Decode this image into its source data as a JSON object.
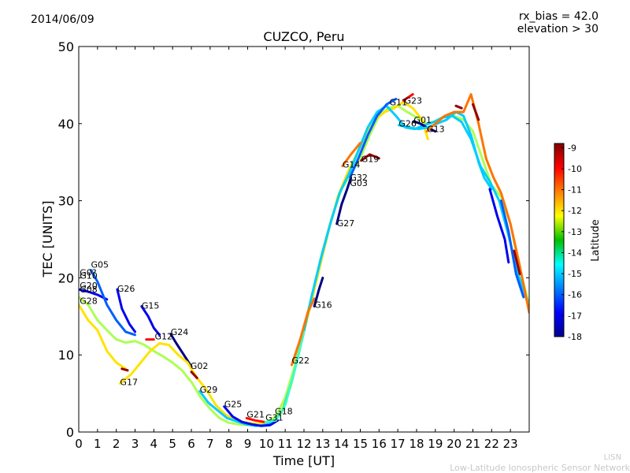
{
  "header": {
    "date": "2014/06/09",
    "rx_bias": "rx_bias = 42.0",
    "elevation": "elevation > 30",
    "title": "CUZCO, Peru"
  },
  "footer": {
    "abbr": "LISN",
    "org": "Low-Latitude Ionospheric Sensor Network"
  },
  "chart_data": {
    "type": "line",
    "title": "CUZCO, Peru",
    "xlabel": "Time [UT]",
    "ylabel": "TEC [UNITS]",
    "xlim": [
      0,
      24
    ],
    "ylim": [
      0,
      50
    ],
    "xticks": [
      "0",
      "1",
      "2",
      "3",
      "4",
      "5",
      "6",
      "7",
      "8",
      "9",
      "10",
      "11",
      "12",
      "13",
      "14",
      "15",
      "16",
      "17",
      "18",
      "19",
      "20",
      "21",
      "22",
      "23"
    ],
    "yticks": [
      "0",
      "10",
      "20",
      "30",
      "40",
      "50"
    ],
    "grid": false,
    "colorbar": {
      "label": "Latitude",
      "range": [
        -18,
        -8.8
      ],
      "ticks": [
        "-9",
        "-10",
        "-11",
        "-12",
        "-13",
        "-14",
        "-15",
        "-16",
        "-17",
        "-18"
      ],
      "colormap": "jet"
    },
    "satellite_labels": [
      {
        "name": "G05",
        "x": 0.65,
        "y": 21.3
      },
      {
        "name": "G0?",
        "x": 0.05,
        "y": 20.3
      },
      {
        "name": "G10",
        "x": 0.05,
        "y": 19.9
      },
      {
        "name": "G20",
        "x": 0.05,
        "y": 18.6
      },
      {
        "name": "G08",
        "x": 0.05,
        "y": 18.1
      },
      {
        "name": "G28",
        "x": 0.05,
        "y": 16.6
      },
      {
        "name": "G26",
        "x": 2.05,
        "y": 18.2
      },
      {
        "name": "G15",
        "x": 3.35,
        "y": 16.0
      },
      {
        "name": "G24",
        "x": 4.9,
        "y": 12.6
      },
      {
        "name": "G12",
        "x": 4.05,
        "y": 12.0
      },
      {
        "name": "G17",
        "x": 2.2,
        "y": 6.1
      },
      {
        "name": "G02",
        "x": 5.95,
        "y": 8.2
      },
      {
        "name": "G29",
        "x": 6.45,
        "y": 5.1
      },
      {
        "name": "G25",
        "x": 7.75,
        "y": 3.2
      },
      {
        "name": "G21",
        "x": 8.95,
        "y": 1.9
      },
      {
        "name": "G31",
        "x": 9.95,
        "y": 1.5
      },
      {
        "name": "G18",
        "x": 10.45,
        "y": 2.3
      },
      {
        "name": "G22",
        "x": 11.35,
        "y": 8.9
      },
      {
        "name": "G16",
        "x": 12.55,
        "y": 16.1
      },
      {
        "name": "G27",
        "x": 13.75,
        "y": 26.7
      },
      {
        "name": "G14",
        "x": 14.05,
        "y": 34.3
      },
      {
        "name": "G32",
        "x": 14.45,
        "y": 32.6
      },
      {
        "name": "G03",
        "x": 14.45,
        "y": 31.9
      },
      {
        "name": "G19",
        "x": 15.05,
        "y": 35.0
      },
      {
        "name": "G11",
        "x": 16.55,
        "y": 42.4
      },
      {
        "name": "G23",
        "x": 17.35,
        "y": 42.6
      },
      {
        "name": "G26",
        "x": 17.05,
        "y": 39.6
      },
      {
        "name": "G01",
        "x": 17.85,
        "y": 40.1
      },
      {
        "name": "G13",
        "x": 18.55,
        "y": 38.9
      }
    ],
    "series": [
      {
        "lat": -17,
        "points": [
          [
            0,
            18.5
          ],
          [
            0.5,
            18.2
          ],
          [
            1.0,
            17.8
          ],
          [
            1.5,
            17.2
          ]
        ]
      },
      {
        "lat": -13,
        "points": [
          [
            0,
            17.5
          ],
          [
            0.5,
            16.5
          ],
          [
            1.0,
            14.5
          ],
          [
            1.5,
            13.2
          ],
          [
            2.0,
            12.0
          ],
          [
            2.5,
            11.6
          ],
          [
            3.0,
            11.8
          ],
          [
            3.5,
            11.3
          ],
          [
            4.0,
            10.5
          ],
          [
            4.5,
            9.8
          ],
          [
            5.0,
            9.0
          ],
          [
            5.5,
            8.0
          ],
          [
            6.0,
            6.5
          ],
          [
            6.5,
            4.5
          ],
          [
            7.0,
            3.0
          ],
          [
            7.5,
            1.8
          ],
          [
            8.0,
            1.2
          ],
          [
            8.5,
            1.0
          ],
          [
            9.0,
            0.9
          ],
          [
            9.5,
            1.0
          ],
          [
            10.0,
            1.2
          ],
          [
            10.5,
            2.0
          ],
          [
            11.0,
            4.5
          ],
          [
            11.5,
            8.5
          ],
          [
            12.0,
            13.5
          ],
          [
            12.5,
            18.5
          ],
          [
            13.0,
            23.5
          ],
          [
            13.5,
            28.0
          ],
          [
            14.0,
            31.5
          ],
          [
            14.5,
            33.5
          ],
          [
            15.0,
            35.5
          ],
          [
            15.5,
            38.5
          ],
          [
            16.0,
            41.0
          ],
          [
            16.5,
            42.0
          ],
          [
            17.0,
            42.3
          ],
          [
            17.5,
            41.5
          ],
          [
            18.0,
            40.8
          ],
          [
            18.5,
            40.0
          ],
          [
            19.0,
            40.3
          ],
          [
            19.5,
            41.0
          ],
          [
            20.0,
            41.0
          ],
          [
            20.5,
            40.5
          ],
          [
            21.0,
            39.0
          ],
          [
            21.5,
            35.5
          ],
          [
            22.0,
            32.0
          ],
          [
            22.5,
            30.5
          ],
          [
            23.0,
            27.0
          ],
          [
            23.5,
            21.0
          ],
          [
            24.0,
            16.5
          ]
        ]
      },
      {
        "lat": -12,
        "points": [
          [
            0,
            16.5
          ],
          [
            0.5,
            14.5
          ],
          [
            1.0,
            13.2
          ],
          [
            1.5,
            10.5
          ],
          [
            2.0,
            9.0
          ],
          [
            2.5,
            8.2
          ]
        ]
      },
      {
        "lat": -16,
        "points": [
          [
            0.65,
            21.0
          ],
          [
            1.0,
            19.5
          ],
          [
            1.5,
            16.5
          ],
          [
            2.0,
            14.5
          ],
          [
            2.5,
            13.0
          ],
          [
            3.0,
            12.6
          ]
        ]
      },
      {
        "lat": -17,
        "points": [
          [
            2.05,
            18.5
          ],
          [
            2.3,
            16.0
          ],
          [
            2.7,
            14.0
          ],
          [
            3.0,
            13.0
          ]
        ]
      },
      {
        "lat": -17,
        "points": [
          [
            3.35,
            16.3
          ],
          [
            3.7,
            15.0
          ],
          [
            4.0,
            13.5
          ],
          [
            4.3,
            12.6
          ]
        ]
      },
      {
        "lat": -18,
        "points": [
          [
            4.9,
            12.7
          ],
          [
            5.2,
            11.5
          ],
          [
            5.6,
            10.0
          ],
          [
            6.0,
            8.5
          ]
        ]
      },
      {
        "lat": -12,
        "points": [
          [
            2.2,
            6.3
          ],
          [
            2.8,
            7.5
          ],
          [
            3.3,
            9.0
          ],
          [
            3.8,
            10.5
          ],
          [
            4.3,
            11.5
          ],
          [
            4.8,
            11.3
          ],
          [
            5.3,
            10.0
          ],
          [
            5.8,
            9.0
          ],
          [
            6.3,
            7.0
          ],
          [
            6.8,
            5.5
          ],
          [
            7.3,
            3.5
          ],
          [
            7.8,
            2.3
          ],
          [
            8.3,
            1.6
          ],
          [
            8.8,
            1.3
          ],
          [
            9.3,
            1.1
          ],
          [
            9.8,
            1.0
          ],
          [
            10.3,
            1.2
          ],
          [
            10.8,
            2.5
          ],
          [
            11.3,
            6.0
          ],
          [
            11.8,
            11.0
          ],
          [
            12.3,
            16.0
          ],
          [
            12.8,
            21.0
          ],
          [
            13.3,
            26.0
          ],
          [
            13.8,
            30.5
          ],
          [
            14.3,
            33.5
          ],
          [
            14.8,
            36.0
          ],
          [
            15.3,
            38.5
          ],
          [
            15.8,
            40.5
          ],
          [
            16.3,
            41.5
          ],
          [
            16.8,
            42.0
          ],
          [
            17.3,
            42.8
          ],
          [
            17.8,
            42.0
          ],
          [
            18.3,
            40.5
          ],
          [
            18.6,
            38.0
          ]
        ]
      },
      {
        "lat": -15,
        "points": [
          [
            6.45,
            5.3
          ],
          [
            6.9,
            3.8
          ],
          [
            7.4,
            2.8
          ],
          [
            7.9,
            1.8
          ],
          [
            8.4,
            1.4
          ],
          [
            8.9,
            1.0
          ],
          [
            9.4,
            0.8
          ],
          [
            9.9,
            0.9
          ],
          [
            10.4,
            1.3
          ],
          [
            10.9,
            3.0
          ],
          [
            11.4,
            7.0
          ],
          [
            11.9,
            12.0
          ],
          [
            12.4,
            17.5
          ],
          [
            12.9,
            22.5
          ],
          [
            13.4,
            27.0
          ],
          [
            13.9,
            31.0
          ],
          [
            14.4,
            33.5
          ],
          [
            14.9,
            36.5
          ],
          [
            15.4,
            39.5
          ],
          [
            15.9,
            41.5
          ],
          [
            16.4,
            42.3
          ],
          [
            16.9,
            41.0
          ],
          [
            17.4,
            39.5
          ],
          [
            17.9,
            39.3
          ],
          [
            18.4,
            39.8
          ],
          [
            18.9,
            40.2
          ],
          [
            19.4,
            40.8
          ],
          [
            19.9,
            41.0
          ],
          [
            20.4,
            40.2
          ],
          [
            20.9,
            38.0
          ],
          [
            21.4,
            34.5
          ],
          [
            21.9,
            32.5
          ],
          [
            22.4,
            30.0
          ],
          [
            22.9,
            25.5
          ],
          [
            23.4,
            20.5
          ],
          [
            23.9,
            17.0
          ]
        ]
      },
      {
        "lat": -17,
        "points": [
          [
            7.75,
            3.3
          ],
          [
            8.2,
            2.0
          ],
          [
            8.7,
            1.3
          ],
          [
            9.2,
            1.0
          ],
          [
            9.7,
            0.8
          ],
          [
            10.2,
            0.9
          ],
          [
            10.6,
            1.5
          ]
        ]
      },
      {
        "lat": -10,
        "points": [
          [
            8.95,
            1.8
          ],
          [
            9.4,
            1.5
          ],
          [
            9.9,
            1.3
          ]
        ]
      },
      {
        "lat": -14,
        "points": [
          [
            9.95,
            1.3
          ],
          [
            10.5,
            1.5
          ],
          [
            11.0,
            3.5
          ],
          [
            11.5,
            8.0
          ],
          [
            12.0,
            13.0
          ]
        ]
      },
      {
        "lat": -11,
        "points": [
          [
            11.35,
            8.7
          ],
          [
            11.8,
            12.0
          ],
          [
            12.2,
            15.5
          ],
          [
            12.55,
            17.3
          ]
        ]
      },
      {
        "lat": -18,
        "points": [
          [
            12.55,
            16.3
          ],
          [
            12.8,
            18.5
          ],
          [
            13.0,
            20.0
          ]
        ]
      },
      {
        "lat": -18,
        "points": [
          [
            13.75,
            27.0
          ],
          [
            14.0,
            29.5
          ],
          [
            14.3,
            31.5
          ],
          [
            14.5,
            33.0
          ]
        ]
      },
      {
        "lat": -11,
        "points": [
          [
            14.05,
            34.5
          ],
          [
            14.5,
            36.0
          ],
          [
            15.0,
            37.5
          ]
        ]
      },
      {
        "lat": -16,
        "points": [
          [
            14.45,
            33.0
          ],
          [
            14.9,
            35.5
          ],
          [
            15.4,
            38.5
          ],
          [
            15.9,
            41.0
          ],
          [
            16.4,
            42.5
          ],
          [
            16.9,
            43.2
          ]
        ]
      },
      {
        "lat": -9,
        "points": [
          [
            15.05,
            35.2
          ],
          [
            15.5,
            36.0
          ],
          [
            16.0,
            35.5
          ]
        ]
      },
      {
        "lat": -18,
        "points": [
          [
            17.85,
            40.3
          ],
          [
            18.2,
            40.0
          ],
          [
            18.6,
            39.4
          ],
          [
            19.0,
            39.0
          ]
        ]
      },
      {
        "lat": -15,
        "points": [
          [
            17.05,
            39.8
          ],
          [
            17.6,
            39.5
          ],
          [
            18.1,
            39.3
          ],
          [
            18.6,
            39.5
          ],
          [
            19.1,
            40.0
          ],
          [
            19.6,
            40.5
          ],
          [
            20.1,
            41.5
          ],
          [
            20.5,
            41.0
          ],
          [
            20.9,
            38.5
          ],
          [
            21.3,
            35.0
          ],
          [
            21.6,
            33.0
          ],
          [
            22.0,
            31.5
          ]
        ]
      },
      {
        "lat": -11,
        "points": [
          [
            18.55,
            39.0
          ],
          [
            19.0,
            40.0
          ],
          [
            19.5,
            41.0
          ],
          [
            20.0,
            41.5
          ],
          [
            20.5,
            41.5
          ],
          [
            20.9,
            43.8
          ],
          [
            21.3,
            40.0
          ],
          [
            21.7,
            35.5
          ],
          [
            22.1,
            33.0
          ],
          [
            22.5,
            31.0
          ],
          [
            23.0,
            27.0
          ],
          [
            23.5,
            21.5
          ],
          [
            24.0,
            15.5
          ]
        ]
      },
      {
        "lat": -9,
        "points": [
          [
            21.0,
            42.5
          ],
          [
            21.3,
            40.5
          ]
        ]
      },
      {
        "lat": -17,
        "points": [
          [
            21.9,
            31.5
          ],
          [
            22.3,
            28.0
          ],
          [
            22.7,
            25.0
          ],
          [
            22.9,
            22.0
          ]
        ]
      },
      {
        "lat": -16,
        "points": [
          [
            22.5,
            30.0
          ],
          [
            22.9,
            26.0
          ],
          [
            23.3,
            20.5
          ],
          [
            23.7,
            17.5
          ]
        ]
      },
      {
        "lat": -9,
        "points": [
          [
            23.2,
            23.5
          ],
          [
            23.5,
            20.5
          ]
        ]
      },
      {
        "lat": -9,
        "points": [
          [
            6.0,
            7.8
          ],
          [
            6.3,
            7.0
          ]
        ]
      },
      {
        "lat": -10,
        "points": [
          [
            3.6,
            12.0
          ],
          [
            4.0,
            12.0
          ]
        ]
      },
      {
        "lat": -9,
        "points": [
          [
            2.3,
            8.2
          ],
          [
            2.6,
            8.0
          ]
        ]
      },
      {
        "lat": -10,
        "points": [
          [
            17.3,
            43.0
          ],
          [
            17.8,
            43.8
          ]
        ]
      },
      {
        "lat": -9,
        "points": [
          [
            20.1,
            42.3
          ],
          [
            20.4,
            42.0
          ]
        ]
      }
    ]
  }
}
